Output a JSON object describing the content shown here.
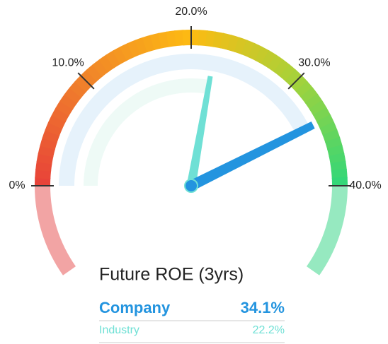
{
  "chart_data": {
    "type": "gauge",
    "title": "Future ROE (3yrs)",
    "xlim": [
      0,
      40
    ],
    "xticks": [
      {
        "value": 0,
        "label": "0%"
      },
      {
        "value": 10,
        "label": "10.0%"
      },
      {
        "value": 20,
        "label": "20.0%"
      },
      {
        "value": 30,
        "label": "30.0%"
      },
      {
        "value": 40,
        "label": "40.0%"
      }
    ],
    "series": [
      {
        "name": "Company",
        "color": "#2394df",
        "values": [
          34.1
        ],
        "value_labels": [
          "34.1%"
        ]
      },
      {
        "name": "Industry",
        "color": "#6fe0d5",
        "values": [
          22.2
        ],
        "value_labels": [
          "22.2%"
        ]
      }
    ]
  }
}
